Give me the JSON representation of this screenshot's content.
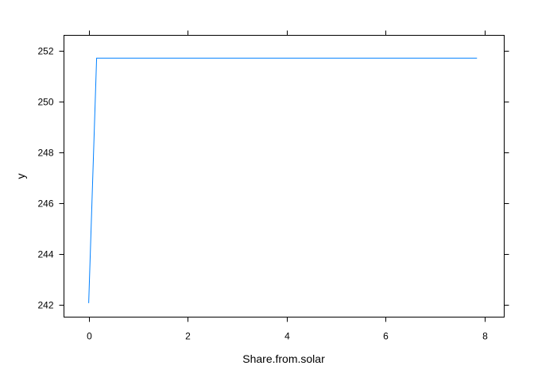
{
  "chart_data": {
    "type": "line",
    "title": "",
    "xlabel": "Share.from.solar",
    "ylabel": "y",
    "xlim": [
      -0.5,
      8.4
    ],
    "ylim": [
      241.5,
      252.6
    ],
    "x_ticks": [
      0,
      2,
      4,
      6,
      8
    ],
    "y_ticks": [
      242,
      244,
      246,
      248,
      250,
      252
    ],
    "x_tick_labels": [
      "0",
      "2",
      "4",
      "6",
      "8"
    ],
    "y_tick_labels": [
      "242",
      "244",
      "246",
      "248",
      "250",
      "252"
    ],
    "grid": false,
    "legend": "none",
    "series": [
      {
        "x": [
          0.0,
          0.16,
          7.85
        ],
        "y": [
          242.05,
          251.7,
          251.7
        ],
        "color": "#0080ff"
      }
    ]
  }
}
